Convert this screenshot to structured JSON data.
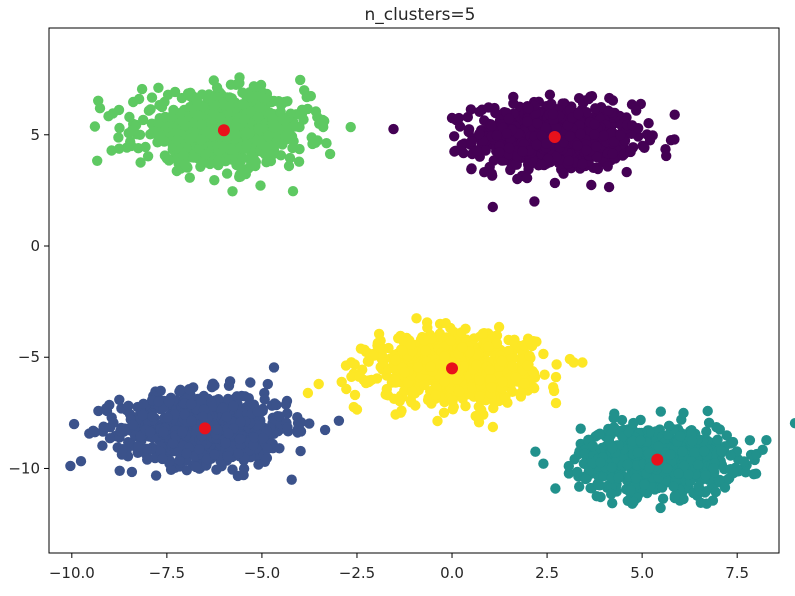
{
  "chart_data": {
    "type": "scatter",
    "title": "n_clusters=5",
    "xlabel": "",
    "ylabel": "",
    "xlim": [
      -10.6,
      8.6
    ],
    "ylim": [
      -13.8,
      9.8
    ],
    "xticks": [
      -10.0,
      -7.5,
      -5.0,
      -2.5,
      0.0,
      2.5,
      5.0,
      7.5
    ],
    "xtick_labels": [
      "−10.0",
      "−7.5",
      "−5.0",
      "−2.5",
      "0.0",
      "2.5",
      "5.0",
      "7.5"
    ],
    "yticks": [
      5,
      0,
      -5,
      -10
    ],
    "ytick_labels": [
      "5",
      "0",
      "−5",
      "−10"
    ],
    "grid": false,
    "legend": "none",
    "clusters": [
      {
        "color": "#440154",
        "center": [
          2.7,
          4.9
        ],
        "spread": [
          1.05,
          0.75
        ],
        "n": 800
      },
      {
        "color": "#3b528b",
        "center": [
          -6.5,
          -8.2
        ],
        "spread": [
          1.1,
          0.8
        ],
        "n": 800
      },
      {
        "color": "#21918c",
        "center": [
          5.4,
          -9.6
        ],
        "spread": [
          1.0,
          0.75
        ],
        "n": 800
      },
      {
        "color": "#5ec962",
        "center": [
          -6.0,
          5.2
        ],
        "spread": [
          1.1,
          0.8
        ],
        "n": 800
      },
      {
        "color": "#fde725",
        "center": [
          0.0,
          -5.5
        ],
        "spread": [
          1.05,
          0.75
        ],
        "n": 800
      }
    ],
    "centroids": {
      "color": "#e8111b",
      "points": [
        [
          2.7,
          4.9
        ],
        [
          -6.5,
          -8.2
        ],
        [
          5.4,
          -9.6
        ],
        [
          -6.0,
          5.2
        ],
        [
          0.0,
          -5.5
        ]
      ]
    }
  }
}
